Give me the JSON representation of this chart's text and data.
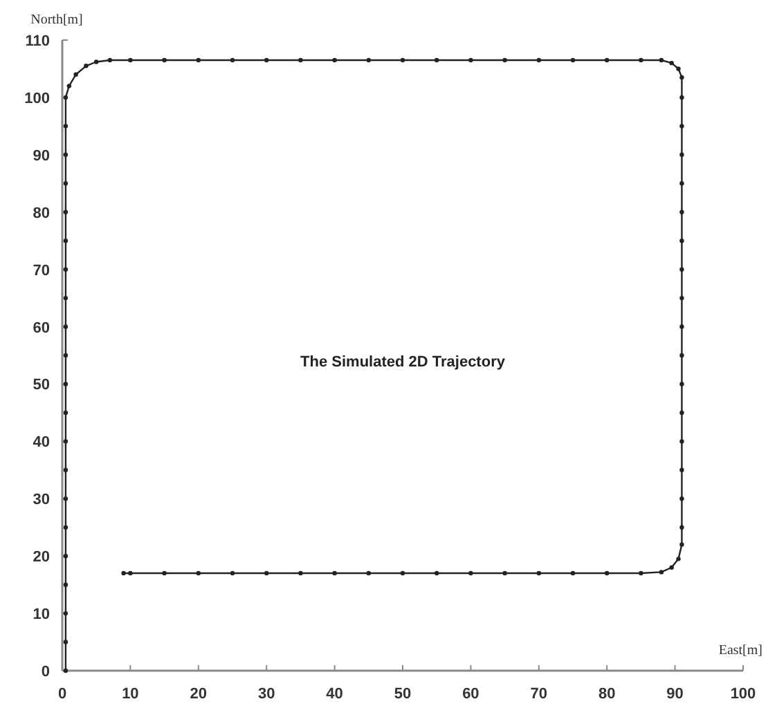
{
  "chart_data": {
    "type": "line",
    "title": "The Simulated 2D Trajectory",
    "xlabel": "East[m]",
    "ylabel": "North[m]",
    "xlim": [
      0,
      100
    ],
    "ylim": [
      0,
      110
    ],
    "xticks": [
      0,
      10,
      20,
      30,
      40,
      50,
      60,
      70,
      80,
      90,
      100
    ],
    "yticks": [
      0,
      10,
      20,
      30,
      40,
      50,
      60,
      70,
      80,
      90,
      100,
      110
    ],
    "grid": false,
    "marker": "circle",
    "line_style": "solid",
    "series": [
      {
        "color": "#222222",
        "x": [
          0.5,
          0.5,
          0.5,
          0.5,
          0.5,
          0.5,
          0.5,
          0.5,
          0.5,
          0.5,
          0.5,
          0.5,
          0.5,
          0.5,
          0.5,
          0.5,
          0.5,
          0.5,
          0.5,
          0.5,
          0.5,
          1,
          2,
          3.5,
          5,
          7,
          10,
          15,
          20,
          25,
          30,
          35,
          40,
          45,
          50,
          55,
          60,
          65,
          70,
          75,
          80,
          85,
          88,
          89.5,
          90.5,
          91,
          91,
          91,
          91,
          91,
          91,
          91,
          91,
          91,
          91,
          91,
          91,
          91,
          91,
          91,
          91,
          91,
          91,
          90.5,
          89.5,
          88,
          85,
          80,
          75,
          70,
          65,
          60,
          55,
          50,
          45,
          40,
          35,
          30,
          25,
          20,
          15,
          10,
          9
        ],
        "values": [
          0,
          5,
          10,
          15,
          20,
          25,
          30,
          35,
          40,
          45,
          50,
          55,
          60,
          65,
          70,
          75,
          80,
          85,
          90,
          95,
          100,
          102,
          104,
          105.5,
          106.2,
          106.5,
          106.5,
          106.5,
          106.5,
          106.5,
          106.5,
          106.5,
          106.5,
          106.5,
          106.5,
          106.5,
          106.5,
          106.5,
          106.5,
          106.5,
          106.5,
          106.5,
          106.5,
          106,
          105,
          103.5,
          100,
          95,
          90,
          85,
          80,
          75,
          70,
          65,
          60,
          55,
          50,
          45,
          40,
          35,
          30,
          25,
          22,
          19.5,
          18,
          17.2,
          17,
          17,
          17,
          17,
          17,
          17,
          17,
          17,
          17,
          17,
          17,
          17,
          17,
          17,
          17,
          17,
          17
        ]
      }
    ]
  }
}
